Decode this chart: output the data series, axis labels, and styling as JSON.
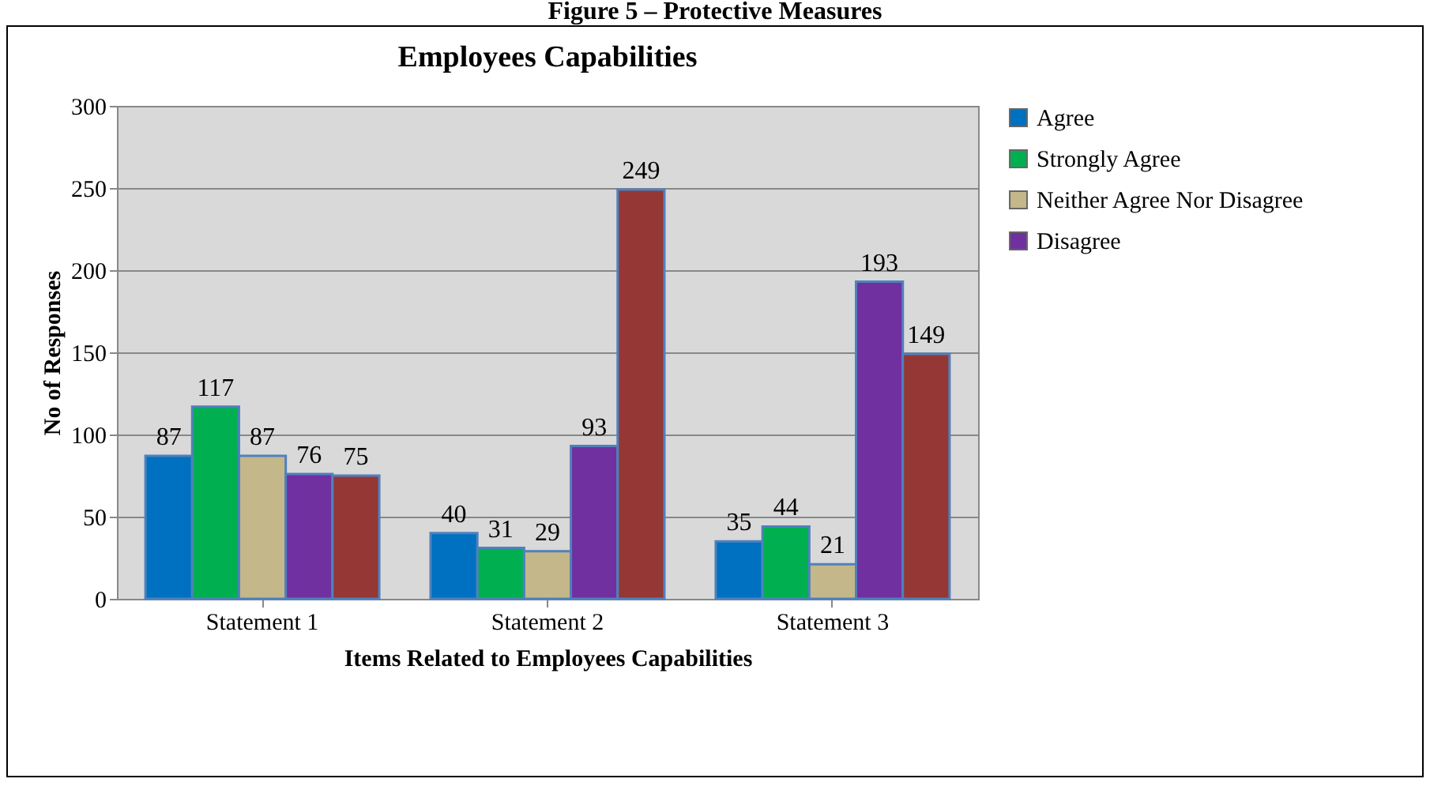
{
  "chart_data": {
    "type": "bar",
    "title": "Employees Capabilities",
    "annotations": [
      "Figure 5 – Protective Measures"
    ],
    "xlabel": "Items Related to Employees Capabilities",
    "ylabel": "No of Responses",
    "categories": [
      "Statement 1",
      "Statement 2",
      "Statement 3"
    ],
    "series": [
      {
        "name": "Agree",
        "color": "#0070c0",
        "values": [
          87,
          40,
          35
        ]
      },
      {
        "name": "Strongly Agree",
        "color": "#00b050",
        "values": [
          117,
          31,
          44
        ]
      },
      {
        "name": "Neither Agree Nor Disagree",
        "color": "#c4b78a",
        "values": [
          87,
          29,
          21
        ]
      },
      {
        "name": "Disagree",
        "color": "#7030a0",
        "values": [
          76,
          93,
          193
        ]
      },
      {
        "color": "#953735",
        "values": [
          75,
          249,
          149
        ]
      }
    ],
    "ylim": [
      0,
      300
    ],
    "yticks": [
      0,
      50,
      100,
      150,
      200,
      250,
      300
    ],
    "grid": "y",
    "legend": "right",
    "data_labels": true
  }
}
